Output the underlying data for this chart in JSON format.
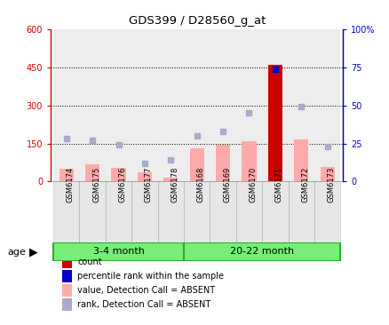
{
  "title": "GDS399 / D28560_g_at",
  "samples": [
    "GSM6174",
    "GSM6175",
    "GSM6176",
    "GSM6177",
    "GSM6178",
    "GSM6168",
    "GSM6169",
    "GSM6170",
    "GSM6171",
    "GSM6172",
    "GSM6173"
  ],
  "groups": [
    {
      "label": "3-4 month",
      "start": 0,
      "end": 4
    },
    {
      "label": "20-22 month",
      "start": 5,
      "end": 10
    }
  ],
  "ylim_left": [
    0,
    600
  ],
  "ylim_right": [
    0,
    100
  ],
  "yticks_left": [
    0,
    150,
    300,
    450,
    600
  ],
  "yticks_right": [
    0,
    25,
    50,
    75,
    100
  ],
  "ytick_labels_left": [
    "0",
    "150",
    "300",
    "450",
    "600"
  ],
  "ytick_labels_right": [
    "0",
    "25",
    "50",
    "75",
    "100%"
  ],
  "hlines": [
    150,
    300,
    450
  ],
  "value_bars": [
    52,
    68,
    55,
    35,
    14,
    130,
    145,
    158,
    460,
    165,
    56
  ],
  "rank_vals_pct": [
    28,
    27,
    24,
    12,
    14,
    30,
    33,
    45,
    74,
    49,
    23
  ],
  "present_bar_color": "#cc0000",
  "absent_bar_color": "#ffaaaa",
  "present_dot_color": "#0000cc",
  "absent_dot_color": "#aaaacc",
  "absent_flags": [
    true,
    true,
    true,
    true,
    true,
    true,
    true,
    true,
    false,
    true,
    true
  ],
  "group_bg_color": "#77ee77",
  "group_border_color": "#33aa33",
  "sample_bg_color": "#bbbbbb",
  "bg_color": "#ffffff",
  "left_axis_color": "#cc0000",
  "right_axis_color": "#0000cc",
  "age_label": "age",
  "legend": [
    {
      "label": "count",
      "color": "#cc0000"
    },
    {
      "label": "percentile rank within the sample",
      "color": "#0000cc"
    },
    {
      "label": "value, Detection Call = ABSENT",
      "color": "#ffaaaa"
    },
    {
      "label": "rank, Detection Call = ABSENT",
      "color": "#aaaacc"
    }
  ]
}
